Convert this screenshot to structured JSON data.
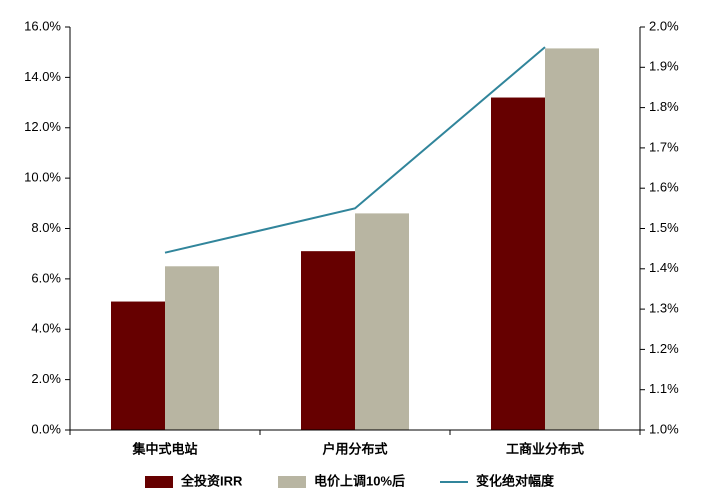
{
  "chart_data": {
    "type": "bar",
    "categories": [
      "集中式电站",
      "户用分布式",
      "工商业分布式"
    ],
    "series": [
      {
        "name": "全投资IRR",
        "color": "#660000",
        "type": "bar",
        "values": [
          5.1,
          7.1,
          13.2
        ]
      },
      {
        "name": "电价上调10%后",
        "color": "#b8b5a2",
        "type": "bar",
        "values": [
          6.5,
          8.6,
          15.15
        ]
      },
      {
        "name": "变化绝对幅度",
        "color": "#31859b",
        "type": "line",
        "axis": "y2",
        "values": [
          1.44,
          1.55,
          1.95
        ]
      }
    ],
    "ylim": [
      0,
      16
    ],
    "yticks": [
      {
        "value": 0,
        "label": "0.0%"
      },
      {
        "value": 2,
        "label": "2.0%"
      },
      {
        "value": 4,
        "label": "4.0%"
      },
      {
        "value": 6,
        "label": "6.0%"
      },
      {
        "value": 8,
        "label": "8.0%"
      },
      {
        "value": 10,
        "label": "10.0%"
      },
      {
        "value": 12,
        "label": "12.0%"
      },
      {
        "value": 14,
        "label": "14.0%"
      },
      {
        "value": 16,
        "label": "16.0%"
      }
    ],
    "y2lim": [
      1.0,
      2.0
    ],
    "y2ticks": [
      {
        "value": 1.0,
        "label": "1.0%"
      },
      {
        "value": 1.1,
        "label": "1.1%"
      },
      {
        "value": 1.2,
        "label": "1.2%"
      },
      {
        "value": 1.3,
        "label": "1.3%"
      },
      {
        "value": 1.4,
        "label": "1.4%"
      },
      {
        "value": 1.5,
        "label": "1.5%"
      },
      {
        "value": 1.6,
        "label": "1.6%"
      },
      {
        "value": 1.7,
        "label": "1.7%"
      },
      {
        "value": 1.8,
        "label": "1.8%"
      },
      {
        "value": 1.9,
        "label": "1.9%"
      },
      {
        "value": 2.0,
        "label": "2.0%"
      }
    ],
    "legend": "bottom"
  }
}
